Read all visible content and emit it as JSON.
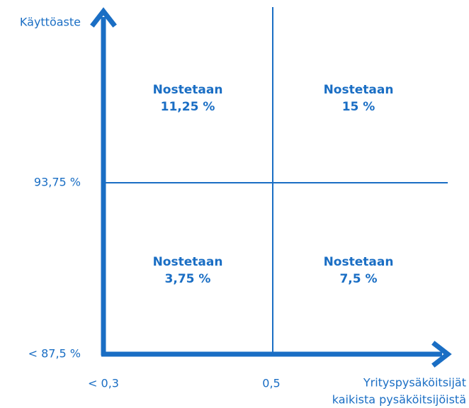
{
  "y_axis": {
    "title": "Käyttöaste",
    "labels": [
      "93,75 %",
      "< 87,5 %"
    ]
  },
  "x_axis": {
    "title": [
      "Yrityspysäköitsijät",
      "kaikista pysäköitsijöistä"
    ],
    "labels": [
      "< 0,3",
      "0,5"
    ]
  },
  "quadrants": [
    {
      "heading": "Nostetaan",
      "value": "11,25 %"
    },
    {
      "heading": "Nostetaan",
      "value": "15 %"
    },
    {
      "heading": "Nostetaan",
      "value": "3,75 %"
    },
    {
      "heading": "Nostetaan",
      "value": "7,5 %"
    }
  ]
}
